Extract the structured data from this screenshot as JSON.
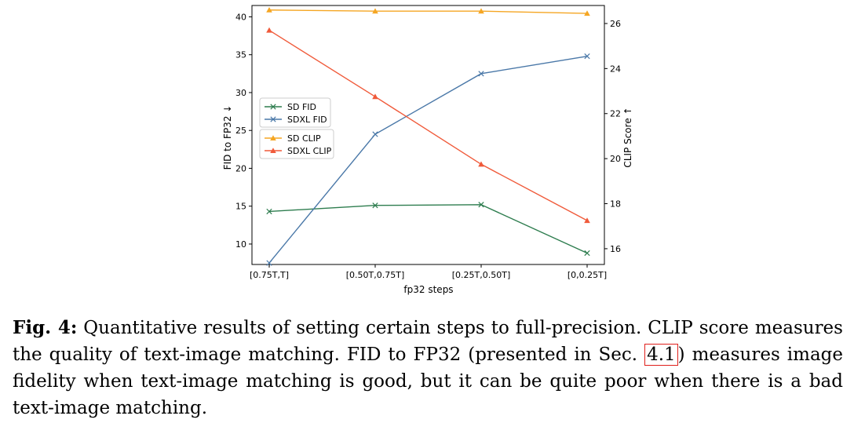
{
  "chart_data": {
    "type": "line",
    "categories": [
      "[0.75T,T]",
      "[0.50T,0.75T]",
      "[0.25T,0.50T]",
      "[0,0.25T]"
    ],
    "xlabel": "fp32 steps",
    "ylabel_left": "FID to FP32 ↓",
    "ylabel_right": "CLIP Score ↑",
    "ylim_left": [
      7.3,
      41.5
    ],
    "ylim_right": [
      15.3,
      26.8
    ],
    "yticks_left": [
      10,
      15,
      20,
      25,
      30,
      35,
      40
    ],
    "yticks_right": [
      16,
      18,
      20,
      22,
      24,
      26
    ],
    "series": [
      {
        "name": "SD FID",
        "axis": "left",
        "marker": "x",
        "color": "#2e7d4f",
        "values": [
          14.3,
          15.1,
          15.2,
          8.8
        ]
      },
      {
        "name": "SDXL FID",
        "axis": "left",
        "marker": "x",
        "color": "#4a78a8",
        "values": [
          7.5,
          24.5,
          32.5,
          34.8
        ]
      },
      {
        "name": "SD CLIP",
        "axis": "right",
        "marker": "^",
        "color": "#f5a623",
        "values": [
          26.6,
          26.55,
          26.55,
          26.45
        ]
      },
      {
        "name": "SDXL CLIP",
        "axis": "right",
        "marker": "^",
        "color": "#f05a3a",
        "values": [
          25.7,
          22.75,
          19.75,
          17.25
        ]
      }
    ],
    "legend_left": [
      "SD FID",
      "SDXL FID"
    ],
    "legend_right": [
      "SD CLIP",
      "SDXL CLIP"
    ],
    "legend_position": "center-left"
  },
  "caption": {
    "label": "Fig. 4:",
    "text_1": " Quantitative results of setting certain steps to full-precision. CLIP score measures the quality of text-image matching. FID to FP32 (presented in Sec. ",
    "ref": "4.1",
    "text_2": ") measures image fidelity when text-image matching is good, but it can be quite poor when there is a bad text-image matching."
  }
}
